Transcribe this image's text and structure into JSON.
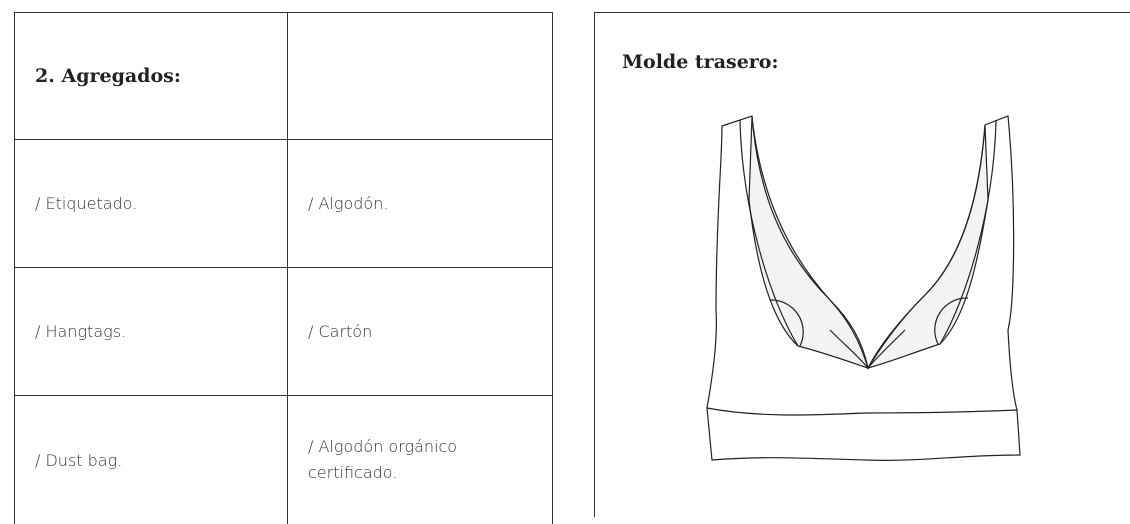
{
  "header": {
    "title": "2. Agregados:"
  },
  "table": {
    "rows": [
      [
        "/ Etiquetado.",
        "/ Algodón."
      ],
      [
        "/ Hangtags.",
        "/ Cartón"
      ],
      [
        "/ Dust bag.",
        "/ Algodón orgánico certificado."
      ]
    ]
  },
  "panel": {
    "title": "Molde trasero:"
  }
}
